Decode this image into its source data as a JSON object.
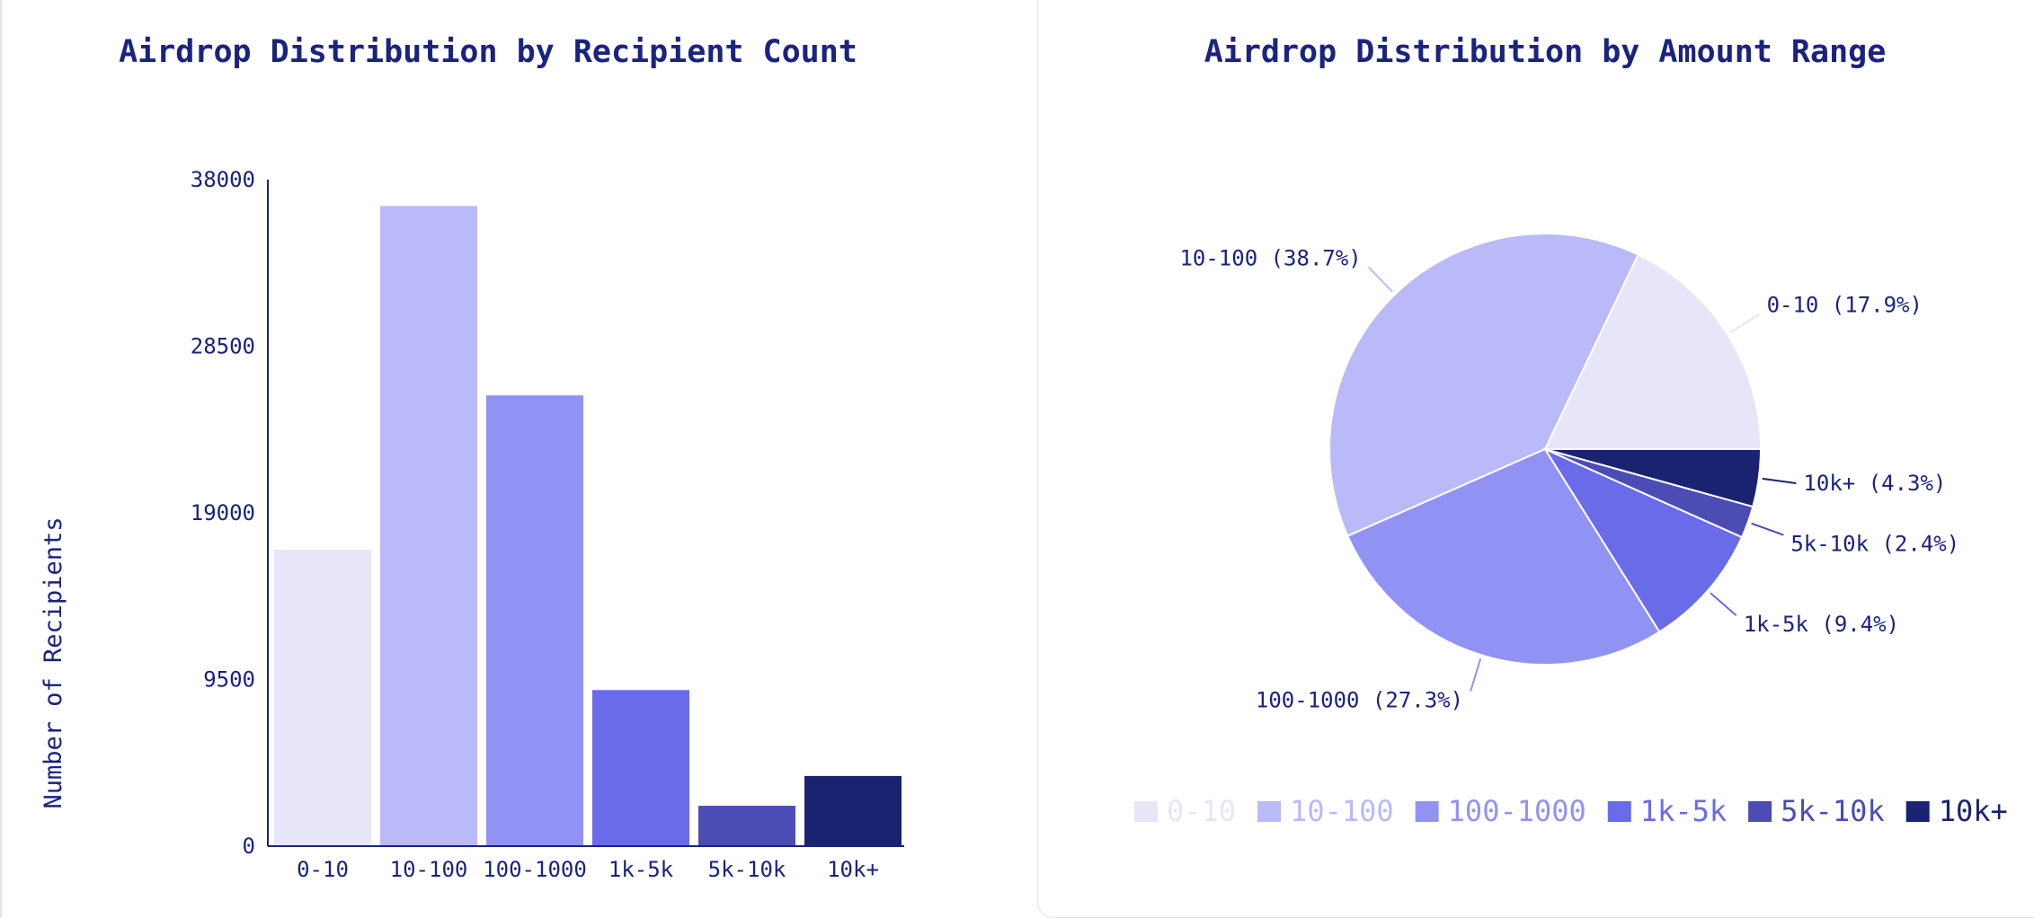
{
  "colors": {
    "ink": "#1a237e",
    "palette": [
      "#e6e6f8",
      "#babaf8",
      "#9193f4",
      "#6a6be8",
      "#4b4cb4",
      "#1a2370"
    ]
  },
  "chart_data": [
    {
      "type": "bar",
      "title": "Airdrop Distribution by Recipient Count",
      "xlabel": "",
      "ylabel": "Number of Recipients",
      "categories": [
        "0-10",
        "10-100",
        "100-1000",
        "1k-5k",
        "5k-10k",
        "10k+"
      ],
      "values": [
        16900,
        36500,
        25700,
        8900,
        2300,
        4000
      ],
      "yticks": [
        "0",
        "9500",
        "19000",
        "28500",
        "38000"
      ],
      "ylim": [
        0,
        38000
      ],
      "grid": false
    },
    {
      "type": "pie",
      "title": "Airdrop Distribution by Amount Range",
      "labels": [
        "0-10",
        "10-100",
        "100-1000",
        "1k-5k",
        "5k-10k",
        "10k+"
      ],
      "values": [
        17.9,
        38.7,
        27.3,
        9.4,
        2.4,
        4.3
      ],
      "slice_labels": [
        "0-10 (17.9%)",
        "10-100 (38.7%)",
        "100-1000 (27.3%)",
        "1k-5k (9.4%)",
        "5k-10k (2.4%)",
        "10k+ (4.3%)"
      ],
      "legend_position": "bottom"
    }
  ]
}
